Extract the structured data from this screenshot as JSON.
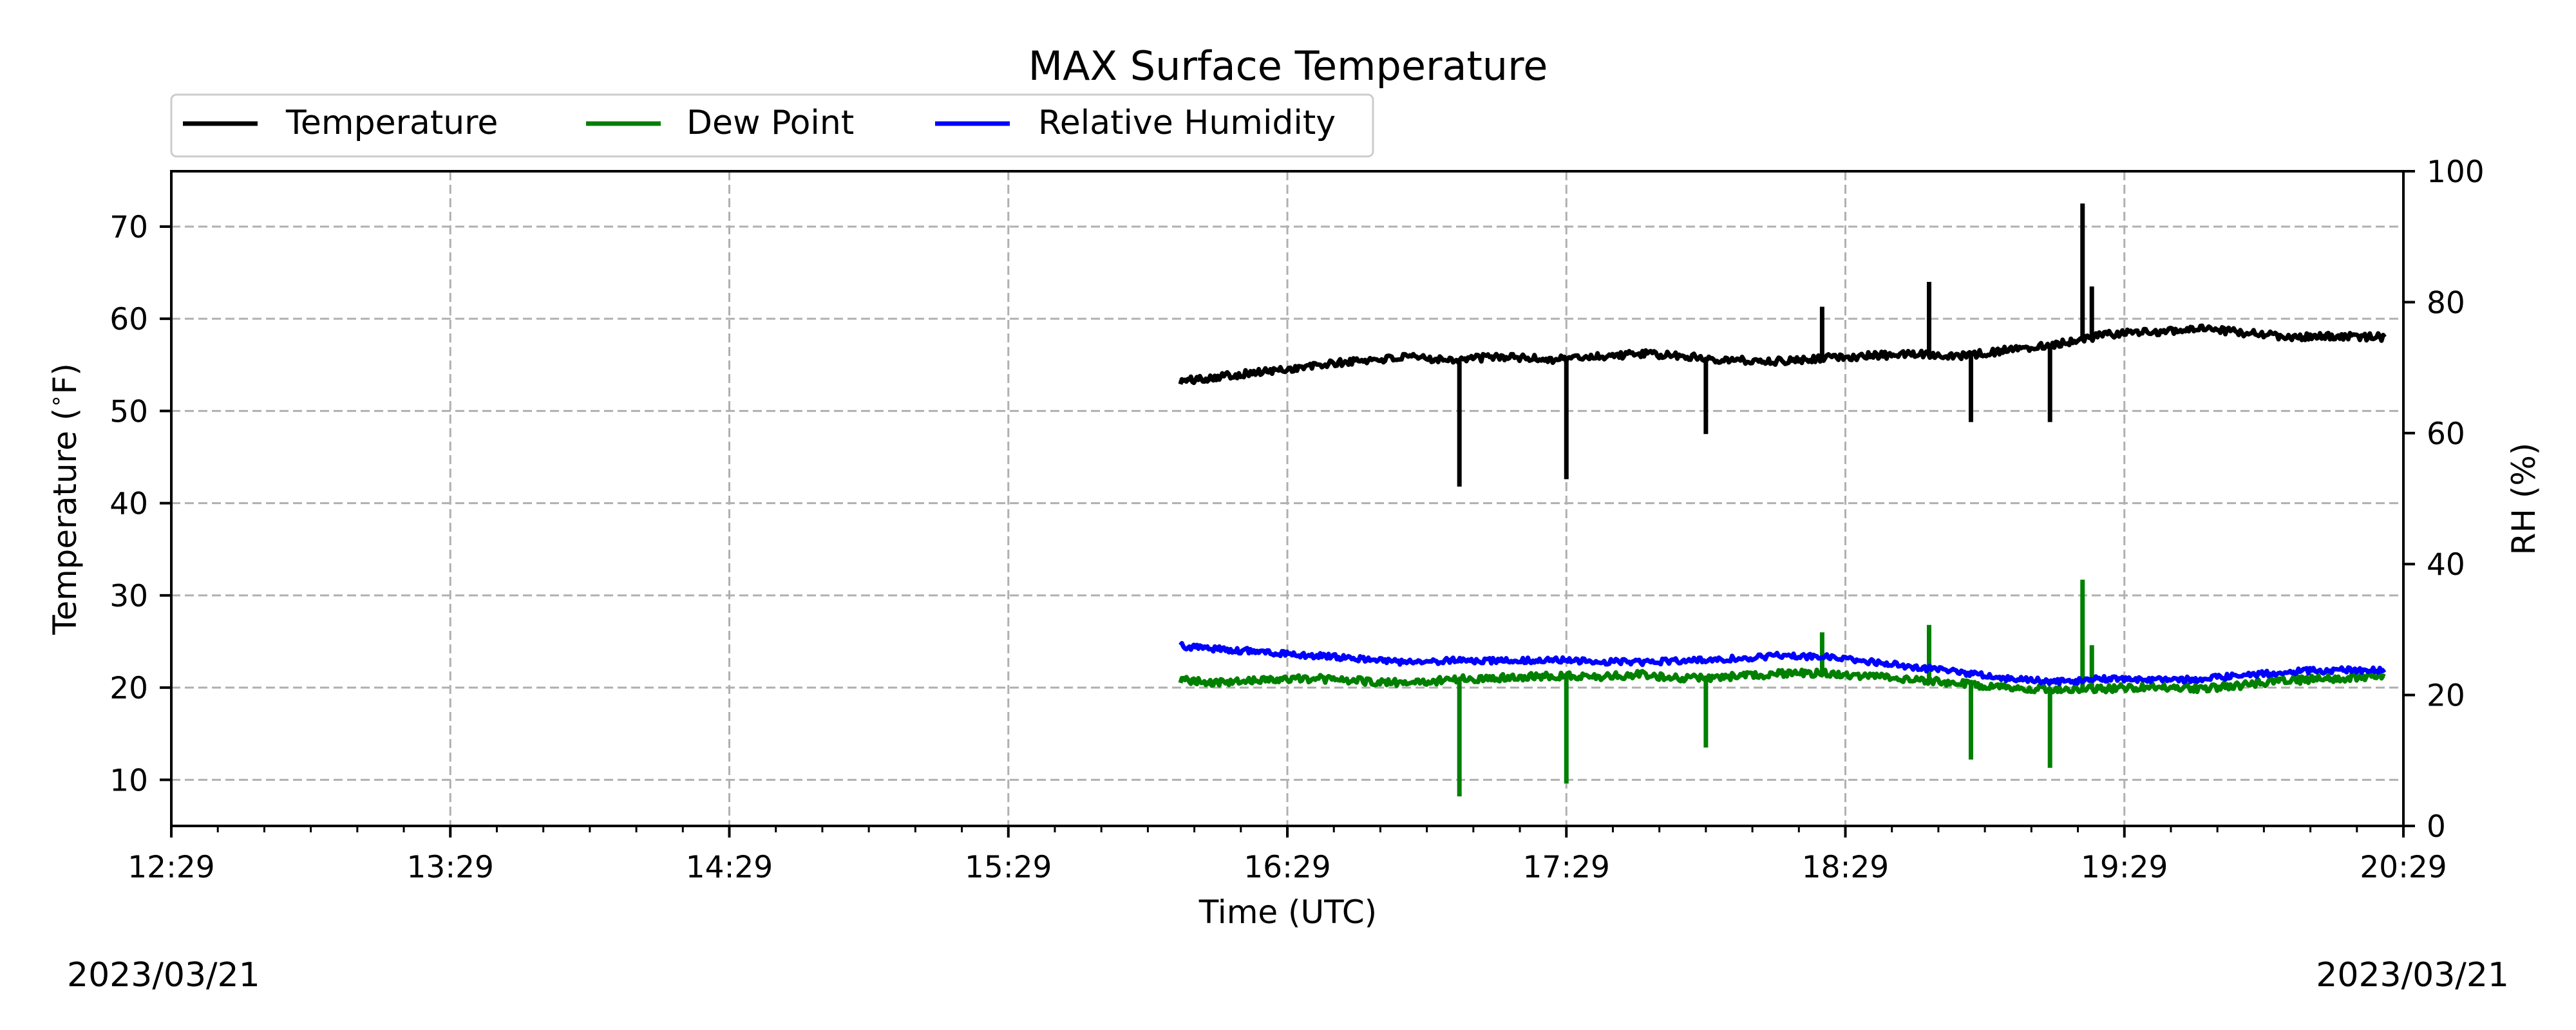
{
  "chart_data": {
    "type": "line",
    "title": "MAX Surface Temperature",
    "xlabel": "Time (UTC)",
    "ylabel": "Temperature ($^\\circ$F)",
    "ylabel_text": "Temperature (",
    "ylabel_unit": "F)",
    "y2label": "RH (%)",
    "x_ticks": [
      "12:29",
      "13:29",
      "14:29",
      "15:29",
      "16:29",
      "17:29",
      "18:29",
      "19:29",
      "20:29"
    ],
    "xlim": [
      "12:29",
      "20:29"
    ],
    "ylim": [
      5,
      76
    ],
    "y_ticks": [
      10,
      20,
      30,
      40,
      50,
      60,
      70
    ],
    "y2lim": [
      0,
      100
    ],
    "y2_ticks": [
      0,
      20,
      40,
      60,
      80,
      100
    ],
    "date_left": "2023/03/21",
    "date_right": "2023/03/21",
    "grid": true,
    "legend_placement": "top-left, above plot",
    "series": [
      {
        "name": "Temperature",
        "axis": "left",
        "color": "#000000",
        "x": [
          "16:06",
          "16:15",
          "16:25",
          "16:35",
          "16:45",
          "16:55",
          "17:05",
          "17:15",
          "17:25",
          "17:35",
          "17:45",
          "17:55",
          "18:05",
          "18:15",
          "18:25",
          "18:35",
          "18:45",
          "18:55",
          "19:05",
          "19:15",
          "19:25",
          "19:35",
          "19:45",
          "19:55",
          "20:05",
          "20:15",
          "20:25"
        ],
        "y": [
          53.2,
          53.8,
          54.3,
          54.9,
          55.5,
          55.8,
          55.6,
          55.9,
          55.6,
          55.9,
          56.2,
          55.9,
          55.5,
          55.4,
          55.8,
          56.0,
          56.2,
          56.0,
          56.7,
          57.3,
          58.3,
          58.6,
          58.9,
          58.5,
          58.0,
          58.1,
          58.0
        ],
        "spikes": [
          {
            "x": "17:06",
            "y": 41.8
          },
          {
            "x": "17:29",
            "y": 42.6
          },
          {
            "x": "17:59",
            "y": 47.5
          },
          {
            "x": "18:24",
            "y": 61.3
          },
          {
            "x": "18:47",
            "y": 64.0
          },
          {
            "x": "18:56",
            "y": 48.8
          },
          {
            "x": "19:13",
            "y": 48.8
          },
          {
            "x": "19:20",
            "y": 72.5
          },
          {
            "x": "19:22",
            "y": 63.5
          }
        ]
      },
      {
        "name": "Dew Point",
        "axis": "left",
        "color": "#008000",
        "x": [
          "16:06",
          "16:15",
          "16:25",
          "16:35",
          "16:45",
          "16:55",
          "17:05",
          "17:15",
          "17:25",
          "17:35",
          "17:45",
          "17:55",
          "18:05",
          "18:15",
          "18:25",
          "18:35",
          "18:45",
          "18:55",
          "19:05",
          "19:15",
          "19:25",
          "19:35",
          "19:45",
          "19:55",
          "20:05",
          "20:15",
          "20:25"
        ],
        "y": [
          20.8,
          20.5,
          20.9,
          21.0,
          20.7,
          20.5,
          20.9,
          21.1,
          21.3,
          21.2,
          21.4,
          21.0,
          21.2,
          21.5,
          21.6,
          21.2,
          20.9,
          20.4,
          20.0,
          19.8,
          19.9,
          20.1,
          19.9,
          20.3,
          20.8,
          21.0,
          21.2
        ],
        "spikes": [
          {
            "x": "17:06",
            "y": 8.2
          },
          {
            "x": "17:29",
            "y": 9.6
          },
          {
            "x": "17:59",
            "y": 13.5
          },
          {
            "x": "18:24",
            "y": 26.0
          },
          {
            "x": "18:47",
            "y": 26.8
          },
          {
            "x": "18:56",
            "y": 12.2
          },
          {
            "x": "19:13",
            "y": 11.3
          },
          {
            "x": "19:20",
            "y": 31.7
          },
          {
            "x": "19:22",
            "y": 24.6
          }
        ]
      },
      {
        "name": "Relative Humidity",
        "axis": "right",
        "color": "#0000ff",
        "x": [
          "16:06",
          "16:15",
          "16:25",
          "16:35",
          "16:45",
          "16:55",
          "17:05",
          "17:15",
          "17:25",
          "17:35",
          "17:45",
          "17:55",
          "18:05",
          "18:15",
          "18:25",
          "18:35",
          "18:45",
          "18:55",
          "19:05",
          "19:15",
          "19:25",
          "19:35",
          "19:45",
          "19:55",
          "20:05",
          "20:15",
          "20:25"
        ],
        "y": [
          27.5,
          27.0,
          26.5,
          26.0,
          25.5,
          25.0,
          25.3,
          25.2,
          25.4,
          25.1,
          25.0,
          25.3,
          25.6,
          26.0,
          25.8,
          25.0,
          24.2,
          23.3,
          22.5,
          22.0,
          22.5,
          22.3,
          22.4,
          23.0,
          23.6,
          23.8,
          23.9
        ]
      }
    ]
  }
}
